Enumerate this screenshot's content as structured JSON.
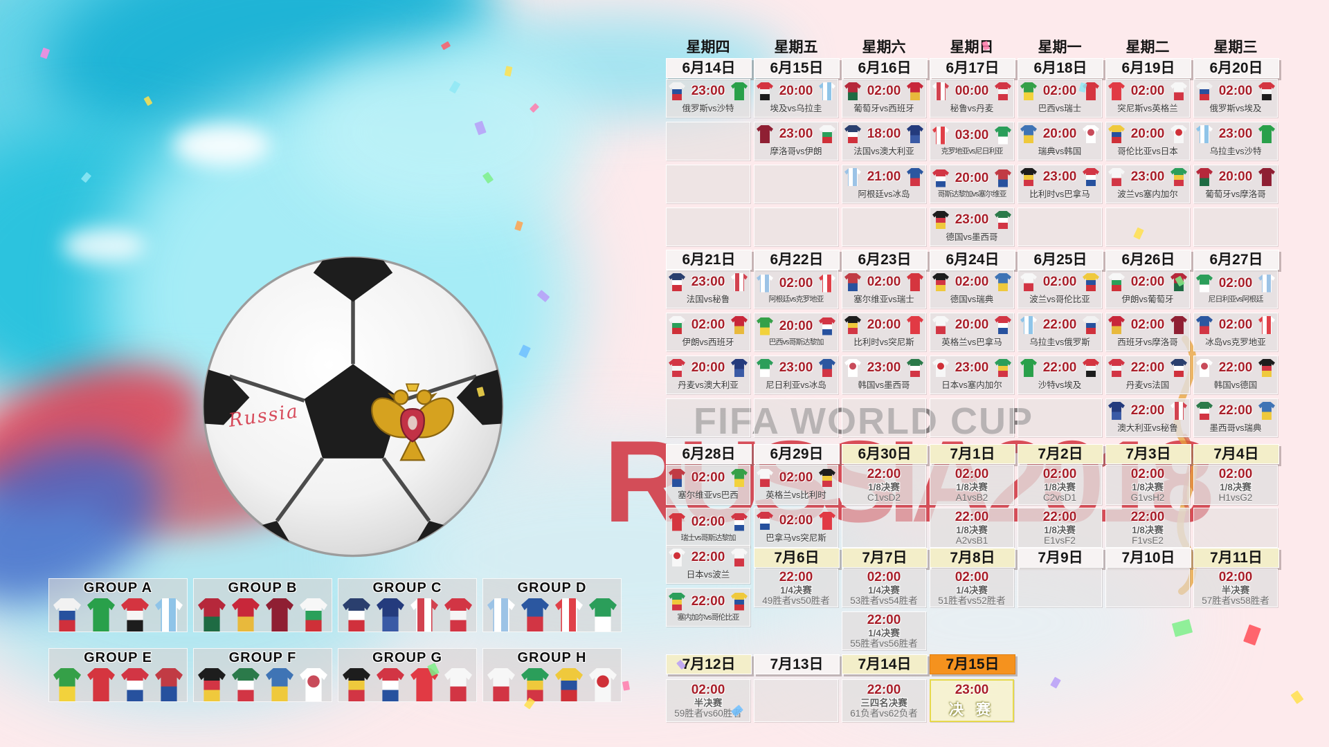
{
  "background": {
    "title": "FIFA WORLD CUP",
    "subtitle": "RUSSIA2018"
  },
  "ball": {
    "text": "Russia"
  },
  "colors": {
    "accent_red": "#a81e29",
    "header_plain": "#f7f3f3",
    "header_cream": "#f3eec9",
    "header_orange": "#f5921e",
    "final_border": "#e6d94c",
    "watermark_red": "#d2323e",
    "watermark_gray": "#3f3f3f"
  },
  "teams": {
    "俄罗斯": {
      "c": [
        "#f2f2f2",
        "#27519e",
        "#d0303c"
      ]
    },
    "沙特": {
      "c": [
        "#29a04a"
      ]
    },
    "埃及": {
      "c": [
        "#d43440",
        "#f5f5f5",
        "#1d1d1d"
      ]
    },
    "乌拉圭": {
      "c": [
        "#8fc4e8",
        "#ffffff"
      ],
      "d": "v"
    },
    "葡萄牙": {
      "c": [
        "#b6283b",
        "#1e6b43"
      ]
    },
    "西班牙": {
      "c": [
        "#c8273a",
        "#e8b93c"
      ]
    },
    "秘鲁": {
      "c": [
        "#ffffff",
        "#d24350"
      ],
      "d": "v"
    },
    "丹麦": {
      "c": [
        "#d23544",
        "#f5f5f5",
        "#d23544"
      ]
    },
    "巴西": {
      "c": [
        "#35a048",
        "#f2d23c"
      ]
    },
    "瑞士": {
      "c": [
        "#d5353f"
      ]
    },
    "突尼斯": {
      "c": [
        "#e13a44"
      ]
    },
    "英格兰": {
      "c": [
        "#f7f7f7",
        "#d23544"
      ]
    },
    "摩洛哥": {
      "c": [
        "#8f1f33"
      ]
    },
    "伊朗": {
      "c": [
        "#f7f7f7",
        "#2aa05a",
        "#cf3038"
      ]
    },
    "法国": {
      "c": [
        "#2a3f6e",
        "#ffffff",
        "#d0303c"
      ]
    },
    "澳大利亚": {
      "c": [
        "#243b7d",
        "#3a5aa5"
      ]
    },
    "克罗地亚": {
      "c": [
        "#e04048",
        "#ffffff"
      ],
      "d": "v"
    },
    "尼日利亚": {
      "c": [
        "#2b9e5a",
        "#ffffff"
      ]
    },
    "瑞典": {
      "c": [
        "#3f74b5",
        "#efc93c"
      ]
    },
    "韩国": {
      "c": [
        "#ffffff",
        "#c84b5a"
      ],
      "d": "dot"
    },
    "哥伦比亚": {
      "c": [
        "#efc93c",
        "#27519e",
        "#cf3038"
      ]
    },
    "日本": {
      "c": [
        "#f7f7f7",
        "#cf3038"
      ],
      "d": "dot"
    },
    "阿根廷": {
      "c": [
        "#9cc3e6",
        "#ffffff"
      ],
      "d": "v"
    },
    "冰岛": {
      "c": [
        "#2b57a0",
        "#d23544"
      ]
    },
    "哥斯达黎加": {
      "c": [
        "#d23544",
        "#ffffff",
        "#27519e"
      ]
    },
    "塞尔维亚": {
      "c": [
        "#c13b44",
        "#27519e"
      ]
    },
    "比利时": {
      "c": [
        "#1d1d1d",
        "#efc93c",
        "#d23544"
      ]
    },
    "巴拿马": {
      "c": [
        "#d23544",
        "#ffffff",
        "#27519e"
      ]
    },
    "波兰": {
      "c": [
        "#f7f7f7",
        "#d23544"
      ]
    },
    "塞内加尔": {
      "c": [
        "#2b9e5a",
        "#efc93c",
        "#d23544"
      ]
    },
    "德国": {
      "c": [
        "#1d1d1d",
        "#d23544",
        "#efc93c"
      ]
    },
    "墨西哥": {
      "c": [
        "#2b7a4a",
        "#ffffff",
        "#d23544"
      ]
    }
  },
  "calendar": {
    "weekdays": [
      "星期四",
      "星期五",
      "星期六",
      "星期日",
      "星期一",
      "星期二",
      "星期三"
    ],
    "blocks": [
      {
        "dates": [
          "6月14日",
          "6月15日",
          "6月16日",
          "6月17日",
          "6月18日",
          "6月19日",
          "6月20日"
        ],
        "date_styles": [
          "plain",
          "plain",
          "plain",
          "plain",
          "plain",
          "plain",
          "plain"
        ],
        "rows": [
          [
            {
              "type": "match",
              "time": "23:00",
              "home": "俄罗斯",
              "away": "沙特",
              "label": "俄罗斯vs沙特"
            },
            {
              "type": "match",
              "time": "20:00",
              "home": "埃及",
              "away": "乌拉圭",
              "label": "埃及vs乌拉圭"
            },
            {
              "type": "match",
              "time": "02:00",
              "home": "葡萄牙",
              "away": "西班牙",
              "label": "葡萄牙vs西班牙"
            },
            {
              "type": "match",
              "time": "00:00",
              "home": "秘鲁",
              "away": "丹麦",
              "label": "秘鲁vs丹麦"
            },
            {
              "type": "match",
              "time": "02:00",
              "home": "巴西",
              "away": "瑞士",
              "label": "巴西vs瑞士"
            },
            {
              "type": "match",
              "time": "02:00",
              "home": "突尼斯",
              "away": "英格兰",
              "label": "突尼斯vs英格兰"
            },
            {
              "type": "match",
              "time": "02:00",
              "home": "俄罗斯",
              "away": "埃及",
              "label": "俄罗斯vs埃及"
            }
          ],
          [
            {
              "type": "empty"
            },
            {
              "type": "match",
              "time": "23:00",
              "home": "摩洛哥",
              "away": "伊朗",
              "label": "摩洛哥vs伊朗"
            },
            {
              "type": "match",
              "time": "18:00",
              "home": "法国",
              "away": "澳大利亚",
              "label": "法国vs澳大利亚"
            },
            {
              "type": "match",
              "time": "03:00",
              "home": "克罗地亚",
              "away": "尼日利亚",
              "label": "克罗地亚vs尼日利亚"
            },
            {
              "type": "match",
              "time": "20:00",
              "home": "瑞典",
              "away": "韩国",
              "label": "瑞典vs韩国"
            },
            {
              "type": "match",
              "time": "20:00",
              "home": "哥伦比亚",
              "away": "日本",
              "label": "哥伦比亚vs日本"
            },
            {
              "type": "match",
              "time": "23:00",
              "home": "乌拉圭",
              "away": "沙特",
              "label": "乌拉圭vs沙特"
            }
          ],
          [
            {
              "type": "empty"
            },
            {
              "type": "empty"
            },
            {
              "type": "match",
              "time": "21:00",
              "home": "阿根廷",
              "away": "冰岛",
              "label": "阿根廷vs冰岛"
            },
            {
              "type": "match",
              "time": "20:00",
              "home": "哥斯达黎加",
              "away": "塞尔维亚",
              "label": "哥斯达黎加vs塞尔维亚"
            },
            {
              "type": "match",
              "time": "23:00",
              "home": "比利时",
              "away": "巴拿马",
              "label": "比利时vs巴拿马"
            },
            {
              "type": "match",
              "time": "23:00",
              "home": "波兰",
              "away": "塞内加尔",
              "label": "波兰vs塞内加尔"
            },
            {
              "type": "match",
              "time": "20:00",
              "home": "葡萄牙",
              "away": "摩洛哥",
              "label": "葡萄牙vs摩洛哥"
            }
          ],
          [
            {
              "type": "empty"
            },
            {
              "type": "empty"
            },
            {
              "type": "empty"
            },
            {
              "type": "match",
              "time": "23:00",
              "home": "德国",
              "away": "墨西哥",
              "label": "德国vs墨西哥"
            },
            {
              "type": "empty"
            },
            {
              "type": "empty"
            },
            {
              "type": "empty"
            }
          ]
        ]
      },
      {
        "dates": [
          "6月21日",
          "6月22日",
          "6月23日",
          "6月24日",
          "6月25日",
          "6月26日",
          "6月27日"
        ],
        "date_styles": [
          "plain",
          "plain",
          "plain",
          "plain",
          "plain",
          "plain",
          "plain"
        ],
        "rows": [
          [
            {
              "type": "match",
              "time": "23:00",
              "home": "法国",
              "away": "秘鲁",
              "label": "法国vs秘鲁"
            },
            {
              "type": "match",
              "time": "02:00",
              "home": "阿根廷",
              "away": "克罗地亚",
              "label": "阿根廷vs克罗地亚"
            },
            {
              "type": "match",
              "time": "02:00",
              "home": "塞尔维亚",
              "away": "瑞士",
              "label": "塞尔维亚vs瑞士"
            },
            {
              "type": "match",
              "time": "02:00",
              "home": "德国",
              "away": "瑞典",
              "label": "德国vs瑞典"
            },
            {
              "type": "match",
              "time": "02:00",
              "home": "波兰",
              "away": "哥伦比亚",
              "label": "波兰vs哥伦比亚"
            },
            {
              "type": "match",
              "time": "02:00",
              "home": "伊朗",
              "away": "葡萄牙",
              "label": "伊朗vs葡萄牙"
            },
            {
              "type": "match",
              "time": "02:00",
              "home": "尼日利亚",
              "away": "阿根廷",
              "label": "尼日利亚vs阿根廷"
            }
          ],
          [
            {
              "type": "match",
              "time": "02:00",
              "home": "伊朗",
              "away": "西班牙",
              "label": "伊朗vs西班牙"
            },
            {
              "type": "match",
              "time": "20:00",
              "home": "巴西",
              "away": "哥斯达黎加",
              "label": "巴西vs哥斯达黎加"
            },
            {
              "type": "match",
              "time": "20:00",
              "home": "比利时",
              "away": "突尼斯",
              "label": "比利时vs突尼斯"
            },
            {
              "type": "match",
              "time": "20:00",
              "home": "英格兰",
              "away": "巴拿马",
              "label": "英格兰vs巴拿马"
            },
            {
              "type": "match",
              "time": "22:00",
              "home": "乌拉圭",
              "away": "俄罗斯",
              "label": "乌拉圭vs俄罗斯"
            },
            {
              "type": "match",
              "time": "02:00",
              "home": "西班牙",
              "away": "摩洛哥",
              "label": "西班牙vs摩洛哥"
            },
            {
              "type": "match",
              "time": "02:00",
              "home": "冰岛",
              "away": "克罗地亚",
              "label": "冰岛vs克罗地亚"
            }
          ],
          [
            {
              "type": "match",
              "time": "20:00",
              "home": "丹麦",
              "away": "澳大利亚",
              "label": "丹麦vs澳大利亚"
            },
            {
              "type": "match",
              "time": "23:00",
              "home": "尼日利亚",
              "away": "冰岛",
              "label": "尼日利亚vs冰岛"
            },
            {
              "type": "match",
              "time": "23:00",
              "home": "韩国",
              "away": "墨西哥",
              "label": "韩国vs墨西哥"
            },
            {
              "type": "match",
              "time": "23:00",
              "home": "日本",
              "away": "塞内加尔",
              "label": "日本vs塞内加尔"
            },
            {
              "type": "match",
              "time": "22:00",
              "home": "沙特",
              "away": "埃及",
              "label": "沙特vs埃及"
            },
            {
              "type": "match",
              "time": "22:00",
              "home": "丹麦",
              "away": "法国",
              "label": "丹麦vs法国"
            },
            {
              "type": "match",
              "time": "22:00",
              "home": "韩国",
              "away": "德国",
              "label": "韩国vs德国"
            }
          ],
          [
            {
              "type": "empty"
            },
            {
              "type": "empty"
            },
            {
              "type": "empty"
            },
            {
              "type": "empty"
            },
            {
              "type": "empty"
            },
            {
              "type": "match",
              "time": "22:00",
              "home": "澳大利亚",
              "away": "秘鲁",
              "label": "澳大利亚vs秘鲁"
            },
            {
              "type": "match",
              "time": "22:00",
              "home": "墨西哥",
              "away": "瑞典",
              "label": "墨西哥vs瑞典"
            }
          ]
        ]
      },
      {
        "dates": [
          "6月28日",
          "6月29日",
          "6月30日",
          "7月1日",
          "7月2日",
          "7月3日",
          "7月4日"
        ],
        "date_styles": [
          "plain",
          "plain",
          "cream",
          "cream",
          "cream",
          "cream",
          "cream"
        ],
        "rows": [
          [
            {
              "type": "match",
              "time": "02:00",
              "home": "塞尔维亚",
              "away": "巴西",
              "label": "塞尔维亚vs巴西"
            },
            {
              "type": "match",
              "time": "02:00",
              "home": "英格兰",
              "away": "比利时",
              "label": "英格兰vs比利时"
            },
            {
              "type": "knockout",
              "time": "22:00",
              "stage": "1/8决赛",
              "teams": "C1vsD2"
            },
            {
              "type": "knockout",
              "time": "02:00",
              "stage": "1/8决赛",
              "teams": "A1vsB2"
            },
            {
              "type": "knockout",
              "time": "02:00",
              "stage": "1/8决赛",
              "teams": "C2vsD1"
            },
            {
              "type": "knockout",
              "time": "02:00",
              "stage": "1/8决赛",
              "teams": "G1vsH2"
            },
            {
              "type": "knockout",
              "time": "02:00",
              "stage": "1/8决赛",
              "teams": "H1vsG2"
            }
          ],
          [
            {
              "type": "match",
              "time": "02:00",
              "home": "瑞士",
              "away": "哥斯达黎加",
              "label": "瑞士vs哥斯达黎加"
            },
            {
              "type": "match",
              "time": "02:00",
              "home": "巴拿马",
              "away": "突尼斯",
              "label": "巴拿马vs突尼斯"
            },
            {
              "type": "empty"
            },
            {
              "type": "knockout",
              "time": "22:00",
              "stage": "1/8决赛",
              "teams": "A2vsB1"
            },
            {
              "type": "knockout",
              "time": "22:00",
              "stage": "1/8决赛",
              "teams": "E1vsF2"
            },
            {
              "type": "knockout",
              "time": "22:00",
              "stage": "1/8决赛",
              "teams": "F1vsE2"
            },
            {
              "type": "empty"
            }
          ]
        ]
      },
      {
        "dates": [
          "7月6日",
          "7月7日",
          "7月8日",
          "7月9日",
          "7月10日",
          "7月11日"
        ],
        "date_styles": [
          "cream",
          "cream",
          "cream",
          "plain",
          "plain",
          "cream"
        ],
        "col0_cells": [
          {
            "type": "match",
            "time": "22:00",
            "home": "日本",
            "away": "波兰",
            "label": "日本vs波兰"
          },
          {
            "type": "match",
            "time": "22:00",
            "home": "塞内加尔",
            "away": "哥伦比亚",
            "label": "塞内加尔vs哥伦比亚"
          }
        ],
        "rows": [
          [
            null,
            {
              "type": "knockout",
              "time": "22:00",
              "stage": "1/4决赛",
              "teams": "49胜者vs50胜者"
            },
            {
              "type": "knockout",
              "time": "02:00",
              "stage": "1/4决赛",
              "teams": "53胜者vs54胜者"
            },
            {
              "type": "knockout",
              "time": "02:00",
              "stage": "1/4决赛",
              "teams": "51胜者vs52胜者"
            },
            {
              "type": "empty"
            },
            {
              "type": "empty"
            },
            {
              "type": "knockout",
              "time": "02:00",
              "stage": "半决赛",
              "teams": "57胜者vs58胜者"
            }
          ],
          [
            null,
            null,
            {
              "type": "knockout",
              "time": "22:00",
              "stage": "1/4决赛",
              "teams": "55胜者vs56胜者"
            },
            null,
            null,
            null,
            null
          ]
        ]
      },
      {
        "dates": [
          "7月12日",
          "7月13日",
          "7月14日",
          "7月15日"
        ],
        "date_styles": [
          "cream",
          "plain",
          "cream",
          "orange"
        ],
        "rows": [
          [
            {
              "type": "knockout",
              "time": "02:00",
              "stage": "半决赛",
              "teams": "59胜者vs60胜者"
            },
            {
              "type": "empty"
            },
            {
              "type": "knockout",
              "time": "22:00",
              "stage": "三四名决赛",
              "teams": "61负者vs62负者"
            },
            {
              "type": "final",
              "time": "23:00",
              "stage": "决 赛"
            }
          ]
        ]
      }
    ]
  },
  "groups": [
    {
      "name": "GROUP A",
      "teams": [
        "俄罗斯",
        "沙特",
        "埃及",
        "乌拉圭"
      ]
    },
    {
      "name": "GROUP B",
      "teams": [
        "葡萄牙",
        "西班牙",
        "摩洛哥",
        "伊朗"
      ]
    },
    {
      "name": "GROUP C",
      "teams": [
        "法国",
        "澳大利亚",
        "秘鲁",
        "丹麦"
      ]
    },
    {
      "name": "GROUP D",
      "teams": [
        "阿根廷",
        "冰岛",
        "克罗地亚",
        "尼日利亚"
      ]
    },
    {
      "name": "GROUP E",
      "teams": [
        "巴西",
        "瑞士",
        "哥斯达黎加",
        "塞尔维亚"
      ]
    },
    {
      "name": "GROUP F",
      "teams": [
        "德国",
        "墨西哥",
        "瑞典",
        "韩国"
      ]
    },
    {
      "name": "GROUP G",
      "teams": [
        "比利时",
        "巴拿马",
        "突尼斯",
        "英格兰"
      ]
    },
    {
      "name": "GROUP H",
      "teams": [
        "波兰",
        "塞内加尔",
        "哥伦比亚",
        "日本"
      ]
    }
  ]
}
